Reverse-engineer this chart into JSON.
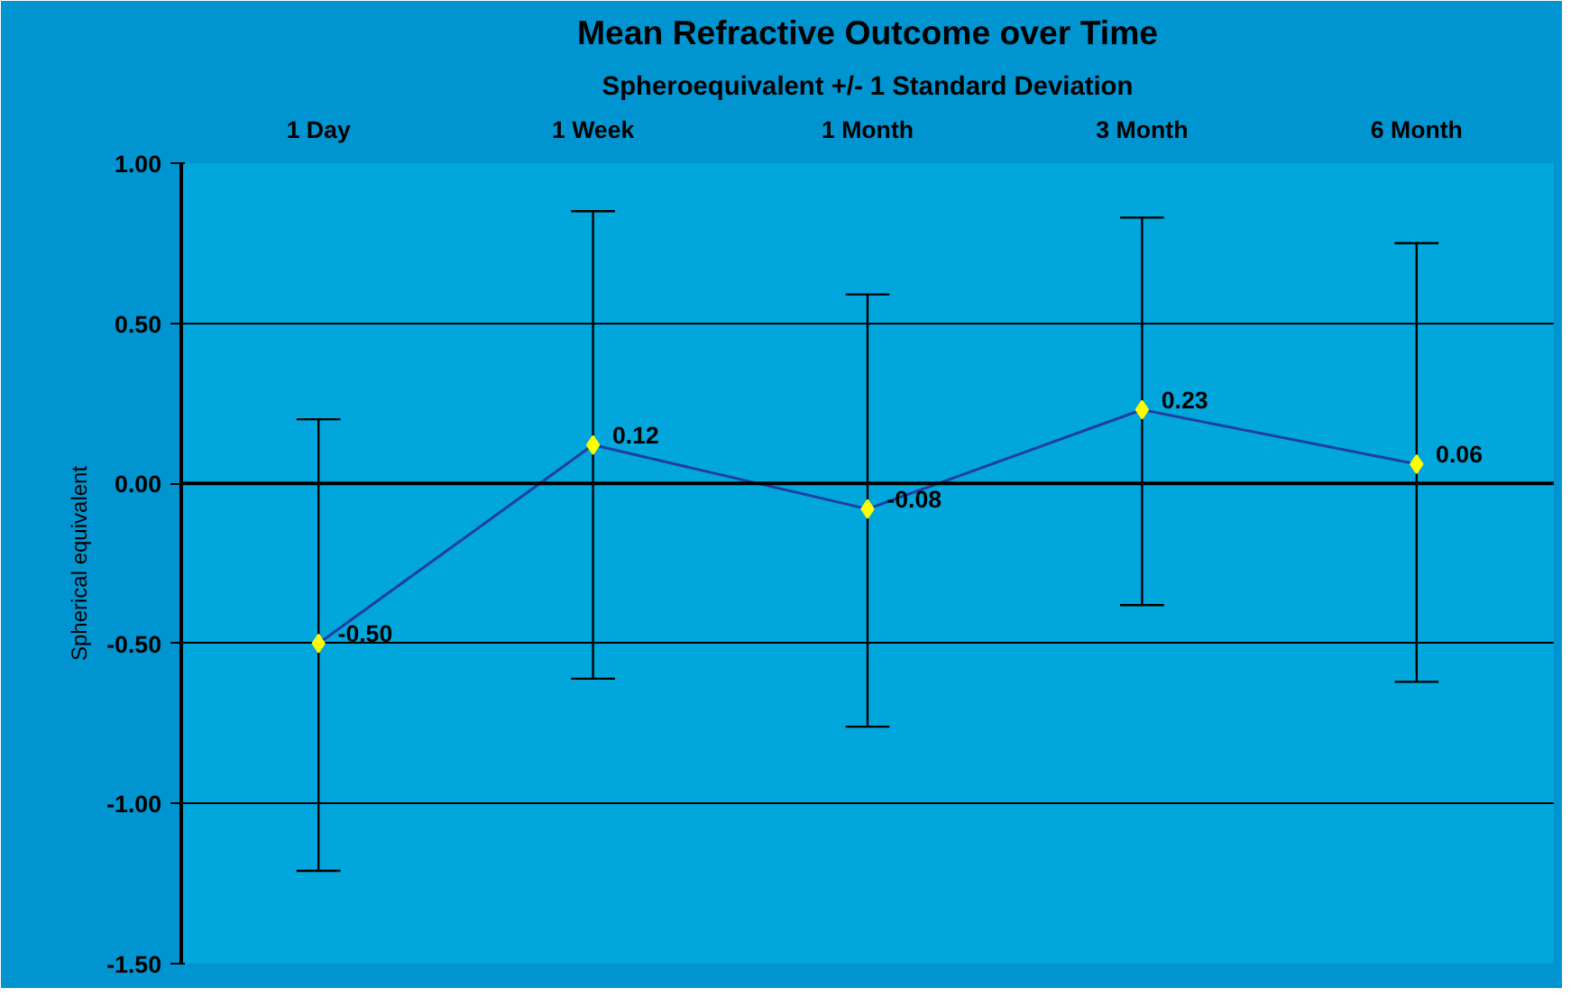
{
  "chart_data": {
    "type": "line",
    "title": "Mean Refractive Outcome over Time",
    "subtitle": "Spheroequivalent +/- 1 Standard Deviation",
    "ylabel": "Spherical equivalent",
    "categories": [
      "1 Day",
      "1 Week",
      "1 Month",
      "3 Month",
      "6 Month"
    ],
    "series": [
      {
        "color": "#1f3f9f",
        "values": [
          -0.5,
          0.12,
          -0.08,
          0.23,
          0.06
        ],
        "errors": [
          [
            -1.21,
            0.2
          ],
          [
            -0.61,
            0.85
          ],
          [
            -0.76,
            0.59
          ],
          [
            -0.38,
            0.83
          ],
          [
            -0.62,
            0.75
          ]
        ],
        "value_labels": [
          "-0.50",
          "0.12",
          "-0.08",
          "0.23",
          "0.06"
        ]
      }
    ],
    "ylim": [
      -1.5,
      1.0
    ],
    "yticks": [
      {
        "value": -1.5,
        "label": "-1.50"
      },
      {
        "value": -1.0,
        "label": "-1.00"
      },
      {
        "value": -0.5,
        "label": "-0.50"
      },
      {
        "value": 0,
        "label": "0.00"
      },
      {
        "value": 0.5,
        "label": "0.50"
      },
      {
        "value": 1.0,
        "label": "1.00"
      }
    ],
    "grid": "y",
    "marker": "diamond",
    "line_style": "solid"
  }
}
